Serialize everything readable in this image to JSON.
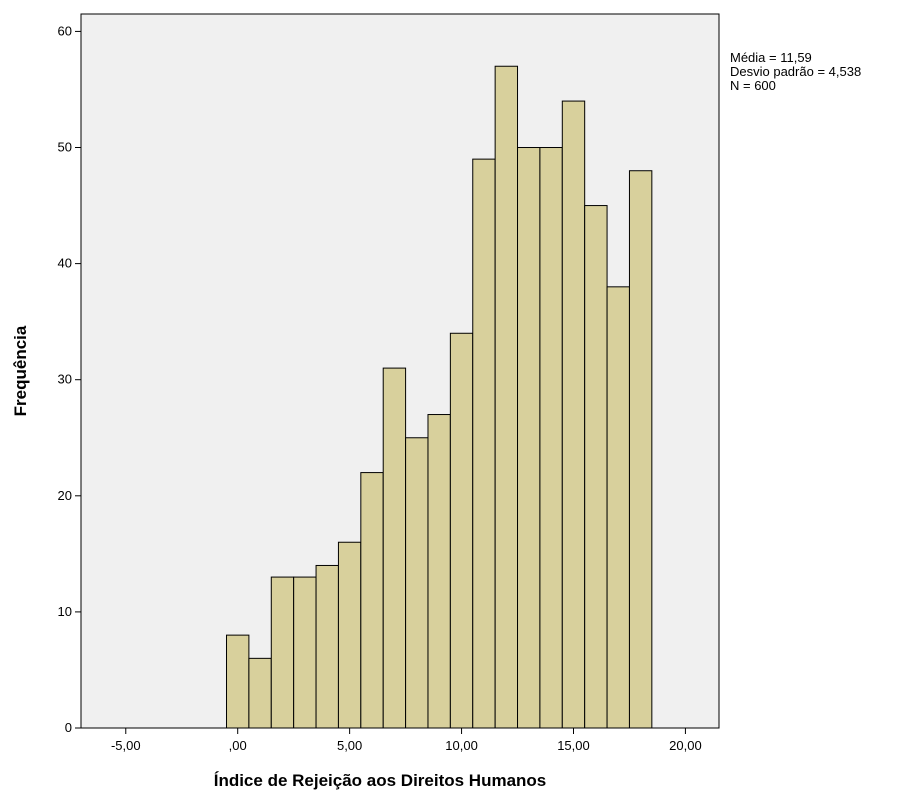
{
  "chart_data": {
    "type": "bar",
    "bin_edges": [
      -0.5,
      0.5,
      1.5,
      2.5,
      3.5,
      4.5,
      5.5,
      6.5,
      7.5,
      8.5,
      9.5,
      10.5,
      11.5,
      12.5,
      13.5,
      14.5,
      15.5,
      16.5,
      17.5,
      18.5
    ],
    "values": [
      8,
      6,
      13,
      13,
      14,
      16,
      22,
      31,
      25,
      27,
      34,
      49,
      57,
      50,
      50,
      54,
      45,
      38,
      48
    ],
    "xlabel": "Índice de Rejeição aos Direitos Humanos",
    "ylabel": "Frequência",
    "xlim": [
      -7.0,
      21.5
    ],
    "ylim": [
      0,
      61.5
    ],
    "x_ticks": [
      {
        "value": -5,
        "label": "-5,00"
      },
      {
        "value": 0,
        "label": ",00"
      },
      {
        "value": 5,
        "label": "5,00"
      },
      {
        "value": 10,
        "label": "10,00"
      },
      {
        "value": 15,
        "label": "15,00"
      },
      {
        "value": 20,
        "label": "20,00"
      }
    ],
    "y_ticks": [
      {
        "value": 0,
        "label": "0"
      },
      {
        "value": 10,
        "label": "10"
      },
      {
        "value": 20,
        "label": "20"
      },
      {
        "value": 30,
        "label": "30"
      },
      {
        "value": 40,
        "label": "40"
      },
      {
        "value": 50,
        "label": "50"
      },
      {
        "value": 60,
        "label": "60"
      }
    ],
    "stats": [
      "Média = 11,59",
      "Desvio padrão = 4,538",
      "N = 600"
    ],
    "grid": false,
    "colors": {
      "bar_fill": "#d8d09c",
      "bar_stroke": "#000000",
      "plot_background": "#f0f0f0",
      "axis": "#000000"
    }
  }
}
